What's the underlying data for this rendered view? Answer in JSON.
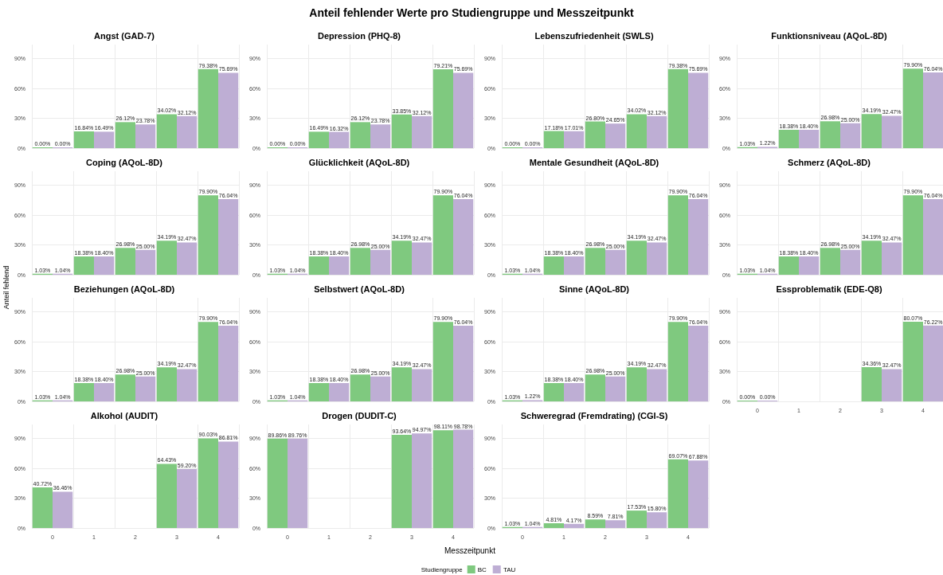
{
  "chart_data": [
    {
      "type": "bar",
      "subtitle": "Angst (GAD-7)",
      "categories": [
        "0",
        "1",
        "2",
        "3",
        "4"
      ],
      "ylim": [
        0,
        104
      ],
      "yticks": [
        {
          "value": 0,
          "label": "0%"
        },
        {
          "value": 30,
          "label": "30%"
        },
        {
          "value": 60,
          "label": "60%"
        },
        {
          "value": 90,
          "label": "90%"
        }
      ],
      "grid": true,
      "tick_labels": "y",
      "series": [
        {
          "color": "#7fc97f",
          "values": [
            0,
            16.84,
            26.12,
            34.02,
            79.38
          ],
          "value_labels": [
            "0.00%",
            "16.84%",
            "26.12%",
            "34.02%",
            "79.38%"
          ]
        },
        {
          "color": "#beaed4",
          "values": [
            0,
            16.49,
            23.78,
            32.12,
            75.69
          ],
          "value_labels": [
            "0.00%",
            "16.49%",
            "23.78%",
            "32.12%",
            "75.69%"
          ]
        }
      ]
    },
    {
      "type": "bar",
      "subtitle": "Depression (PHQ-8)",
      "categories": [
        "0",
        "1",
        "2",
        "3",
        "4"
      ],
      "ylim": [
        0,
        104
      ],
      "yticks": [
        {
          "value": 0,
          "label": "0%"
        },
        {
          "value": 30,
          "label": "30%"
        },
        {
          "value": 60,
          "label": "60%"
        },
        {
          "value": 90,
          "label": "90%"
        }
      ],
      "grid": true,
      "tick_labels": "y",
      "series": [
        {
          "color": "#7fc97f",
          "values": [
            0,
            16.49,
            26.12,
            33.85,
            79.21
          ],
          "value_labels": [
            "0.00%",
            "16.49%",
            "26.12%",
            "33.85%",
            "79.21%"
          ]
        },
        {
          "color": "#beaed4",
          "values": [
            0,
            16.32,
            23.78,
            32.12,
            75.69
          ],
          "value_labels": [
            "0.00%",
            "16.32%",
            "23.78%",
            "32.12%",
            "75.69%"
          ]
        }
      ]
    },
    {
      "type": "bar",
      "subtitle": "Lebenszufriedenheit (SWLS)",
      "categories": [
        "0",
        "1",
        "2",
        "3",
        "4"
      ],
      "ylim": [
        0,
        104
      ],
      "yticks": [
        {
          "value": 0,
          "label": "0%"
        },
        {
          "value": 30,
          "label": "30%"
        },
        {
          "value": 60,
          "label": "60%"
        },
        {
          "value": 90,
          "label": "90%"
        }
      ],
      "grid": true,
      "tick_labels": "y",
      "series": [
        {
          "color": "#7fc97f",
          "values": [
            0,
            17.18,
            26.8,
            34.02,
            79.38
          ],
          "value_labels": [
            "0.00%",
            "17.18%",
            "26.80%",
            "34.02%",
            "79.38%"
          ]
        },
        {
          "color": "#beaed4",
          "values": [
            0,
            17.01,
            24.65,
            32.12,
            75.69
          ],
          "value_labels": [
            "0.00%",
            "17.01%",
            "24.65%",
            "32.12%",
            "75.69%"
          ]
        }
      ]
    },
    {
      "type": "bar",
      "subtitle": "Funktionsniveau (AQoL-8D)",
      "categories": [
        "0",
        "1",
        "2",
        "3",
        "4"
      ],
      "ylim": [
        0,
        104
      ],
      "yticks": [
        {
          "value": 0,
          "label": "0%"
        },
        {
          "value": 30,
          "label": "30%"
        },
        {
          "value": 60,
          "label": "60%"
        },
        {
          "value": 90,
          "label": "90%"
        }
      ],
      "grid": true,
      "tick_labels": "y",
      "series": [
        {
          "color": "#7fc97f",
          "values": [
            1.03,
            18.38,
            26.98,
            34.19,
            79.9
          ],
          "value_labels": [
            "1.03%",
            "18.38%",
            "26.98%",
            "34.19%",
            "79.90%"
          ]
        },
        {
          "color": "#beaed4",
          "values": [
            1.22,
            18.4,
            25.0,
            32.47,
            76.04
          ],
          "value_labels": [
            "1.22%",
            "18.40%",
            "25.00%",
            "32.47%",
            "76.04%"
          ]
        }
      ]
    },
    {
      "type": "bar",
      "subtitle": "Coping (AQoL-8D)",
      "categories": [
        "0",
        "1",
        "2",
        "3",
        "4"
      ],
      "ylim": [
        0,
        104
      ],
      "yticks": [
        {
          "value": 0,
          "label": "0%"
        },
        {
          "value": 30,
          "label": "30%"
        },
        {
          "value": 60,
          "label": "60%"
        },
        {
          "value": 90,
          "label": "90%"
        }
      ],
      "grid": true,
      "tick_labels": "y",
      "series": [
        {
          "color": "#7fc97f",
          "values": [
            1.03,
            18.38,
            26.98,
            34.19,
            79.9
          ],
          "value_labels": [
            "1.03%",
            "18.38%",
            "26.98%",
            "34.19%",
            "79.90%"
          ]
        },
        {
          "color": "#beaed4",
          "values": [
            1.04,
            18.4,
            25.0,
            32.47,
            76.04
          ],
          "value_labels": [
            "1.04%",
            "18.40%",
            "25.00%",
            "32.47%",
            "76.04%"
          ]
        }
      ]
    },
    {
      "type": "bar",
      "subtitle": "Glücklichkeit (AQoL-8D)",
      "categories": [
        "0",
        "1",
        "2",
        "3",
        "4"
      ],
      "ylim": [
        0,
        104
      ],
      "yticks": [
        {
          "value": 0,
          "label": "0%"
        },
        {
          "value": 30,
          "label": "30%"
        },
        {
          "value": 60,
          "label": "60%"
        },
        {
          "value": 90,
          "label": "90%"
        }
      ],
      "grid": true,
      "tick_labels": "y",
      "series": [
        {
          "color": "#7fc97f",
          "values": [
            1.03,
            18.38,
            26.98,
            34.19,
            79.9
          ],
          "value_labels": [
            "1.03%",
            "18.38%",
            "26.98%",
            "34.19%",
            "79.90%"
          ]
        },
        {
          "color": "#beaed4",
          "values": [
            1.04,
            18.4,
            25.0,
            32.47,
            76.04
          ],
          "value_labels": [
            "1.04%",
            "18.40%",
            "25.00%",
            "32.47%",
            "76.04%"
          ]
        }
      ]
    },
    {
      "type": "bar",
      "subtitle": "Mentale Gesundheit (AQoL-8D)",
      "categories": [
        "0",
        "1",
        "2",
        "3",
        "4"
      ],
      "ylim": [
        0,
        104
      ],
      "yticks": [
        {
          "value": 0,
          "label": "0%"
        },
        {
          "value": 30,
          "label": "30%"
        },
        {
          "value": 60,
          "label": "60%"
        },
        {
          "value": 90,
          "label": "90%"
        }
      ],
      "grid": true,
      "tick_labels": "y",
      "series": [
        {
          "color": "#7fc97f",
          "values": [
            1.03,
            18.38,
            26.98,
            34.19,
            79.9
          ],
          "value_labels": [
            "1.03%",
            "18.38%",
            "26.98%",
            "34.19%",
            "79.90%"
          ]
        },
        {
          "color": "#beaed4",
          "values": [
            1.04,
            18.4,
            25.0,
            32.47,
            76.04
          ],
          "value_labels": [
            "1.04%",
            "18.40%",
            "25.00%",
            "32.47%",
            "76.04%"
          ]
        }
      ]
    },
    {
      "type": "bar",
      "subtitle": "Schmerz (AQoL-8D)",
      "categories": [
        "0",
        "1",
        "2",
        "3",
        "4"
      ],
      "ylim": [
        0,
        104
      ],
      "yticks": [
        {
          "value": 0,
          "label": "0%"
        },
        {
          "value": 30,
          "label": "30%"
        },
        {
          "value": 60,
          "label": "60%"
        },
        {
          "value": 90,
          "label": "90%"
        }
      ],
      "grid": true,
      "tick_labels": "y",
      "series": [
        {
          "color": "#7fc97f",
          "values": [
            1.03,
            18.38,
            26.98,
            34.19,
            79.9
          ],
          "value_labels": [
            "1.03%",
            "18.38%",
            "26.98%",
            "34.19%",
            "79.90%"
          ]
        },
        {
          "color": "#beaed4",
          "values": [
            1.04,
            18.4,
            25.0,
            32.47,
            76.04
          ],
          "value_labels": [
            "1.04%",
            "18.40%",
            "25.00%",
            "32.47%",
            "76.04%"
          ]
        }
      ]
    },
    {
      "type": "bar",
      "subtitle": "Beziehungen (AQoL-8D)",
      "categories": [
        "0",
        "1",
        "2",
        "3",
        "4"
      ],
      "ylim": [
        0,
        104
      ],
      "yticks": [
        {
          "value": 0,
          "label": "0%"
        },
        {
          "value": 30,
          "label": "30%"
        },
        {
          "value": 60,
          "label": "60%"
        },
        {
          "value": 90,
          "label": "90%"
        }
      ],
      "grid": true,
      "tick_labels": "y",
      "series": [
        {
          "color": "#7fc97f",
          "values": [
            1.03,
            18.38,
            26.98,
            34.19,
            79.9
          ],
          "value_labels": [
            "1.03%",
            "18.38%",
            "26.98%",
            "34.19%",
            "79.90%"
          ]
        },
        {
          "color": "#beaed4",
          "values": [
            1.04,
            18.4,
            25.0,
            32.47,
            76.04
          ],
          "value_labels": [
            "1.04%",
            "18.40%",
            "25.00%",
            "32.47%",
            "76.04%"
          ]
        }
      ]
    },
    {
      "type": "bar",
      "subtitle": "Selbstwert (AQoL-8D)",
      "categories": [
        "0",
        "1",
        "2",
        "3",
        "4"
      ],
      "ylim": [
        0,
        104
      ],
      "yticks": [
        {
          "value": 0,
          "label": "0%"
        },
        {
          "value": 30,
          "label": "30%"
        },
        {
          "value": 60,
          "label": "60%"
        },
        {
          "value": 90,
          "label": "90%"
        }
      ],
      "grid": true,
      "tick_labels": "y",
      "series": [
        {
          "color": "#7fc97f",
          "values": [
            1.03,
            18.38,
            26.98,
            34.19,
            79.9
          ],
          "value_labels": [
            "1.03%",
            "18.38%",
            "26.98%",
            "34.19%",
            "79.90%"
          ]
        },
        {
          "color": "#beaed4",
          "values": [
            1.04,
            18.4,
            25.0,
            32.47,
            76.04
          ],
          "value_labels": [
            "1.04%",
            "18.40%",
            "25.00%",
            "32.47%",
            "76.04%"
          ]
        }
      ]
    },
    {
      "type": "bar",
      "subtitle": "Sinne (AQoL-8D)",
      "categories": [
        "0",
        "1",
        "2",
        "3",
        "4"
      ],
      "ylim": [
        0,
        104
      ],
      "yticks": [
        {
          "value": 0,
          "label": "0%"
        },
        {
          "value": 30,
          "label": "30%"
        },
        {
          "value": 60,
          "label": "60%"
        },
        {
          "value": 90,
          "label": "90%"
        }
      ],
      "grid": true,
      "tick_labels": "y",
      "series": [
        {
          "color": "#7fc97f",
          "values": [
            1.03,
            18.38,
            26.98,
            34.19,
            79.9
          ],
          "value_labels": [
            "1.03%",
            "18.38%",
            "26.98%",
            "34.19%",
            "79.90%"
          ]
        },
        {
          "color": "#beaed4",
          "values": [
            1.22,
            18.4,
            25.0,
            32.47,
            76.04
          ],
          "value_labels": [
            "1.22%",
            "18.40%",
            "25.00%",
            "32.47%",
            "76.04%"
          ]
        }
      ]
    },
    {
      "type": "bar",
      "subtitle": "Essproblematik (EDE-Q8)",
      "categories": [
        "0",
        "1",
        "2",
        "3",
        "4"
      ],
      "ylim": [
        0,
        104
      ],
      "yticks": [
        {
          "value": 0,
          "label": "0%"
        },
        {
          "value": 30,
          "label": "30%"
        },
        {
          "value": 60,
          "label": "60%"
        },
        {
          "value": 90,
          "label": "90%"
        }
      ],
      "grid": true,
      "series": [
        {
          "color": "#7fc97f",
          "values": [
            0,
            null,
            null,
            34.36,
            80.07
          ],
          "value_labels": [
            "0.00%",
            null,
            null,
            "34.36%",
            "80.07%"
          ]
        },
        {
          "color": "#beaed4",
          "values": [
            0,
            null,
            null,
            32.47,
            76.22
          ],
          "value_labels": [
            "0.00%",
            null,
            null,
            "32.47%",
            "76.22%"
          ]
        }
      ]
    },
    {
      "type": "bar",
      "subtitle": "Alkohol (AUDIT)",
      "categories": [
        "0",
        "1",
        "2",
        "3",
        "4"
      ],
      "ylim": [
        0,
        104
      ],
      "yticks": [
        {
          "value": 0,
          "label": "0%"
        },
        {
          "value": 30,
          "label": "30%"
        },
        {
          "value": 60,
          "label": "60%"
        },
        {
          "value": 90,
          "label": "90%"
        }
      ],
      "grid": true,
      "series": [
        {
          "color": "#7fc97f",
          "values": [
            40.72,
            null,
            null,
            64.43,
            90.03
          ],
          "value_labels": [
            "40.72%",
            null,
            null,
            "64.43%",
            "90.03%"
          ]
        },
        {
          "color": "#beaed4",
          "values": [
            36.46,
            null,
            null,
            59.2,
            86.81
          ],
          "value_labels": [
            "36.46%",
            null,
            null,
            "59.20%",
            "86.81%"
          ]
        }
      ]
    },
    {
      "type": "bar",
      "subtitle": "Drogen (DUDIT-C)",
      "categories": [
        "0",
        "1",
        "2",
        "3",
        "4"
      ],
      "ylim": [
        0,
        104
      ],
      "yticks": [
        {
          "value": 0,
          "label": "0%"
        },
        {
          "value": 30,
          "label": "30%"
        },
        {
          "value": 60,
          "label": "60%"
        },
        {
          "value": 90,
          "label": "90%"
        }
      ],
      "grid": true,
      "series": [
        {
          "color": "#7fc97f",
          "values": [
            89.86,
            null,
            null,
            93.64,
            98.11
          ],
          "value_labels": [
            "89.86%",
            null,
            null,
            "93.64%",
            "98.11%"
          ]
        },
        {
          "color": "#beaed4",
          "values": [
            89.76,
            null,
            null,
            94.97,
            98.78
          ],
          "value_labels": [
            "89.76%",
            null,
            null,
            "94.97%",
            "98.78%"
          ]
        }
      ]
    },
    {
      "type": "bar",
      "subtitle": "Schweregrad (Fremdrating) (CGI-S)",
      "categories": [
        "0",
        "1",
        "2",
        "3",
        "4"
      ],
      "ylim": [
        0,
        104
      ],
      "yticks": [
        {
          "value": 0,
          "label": "0%"
        },
        {
          "value": 30,
          "label": "30%"
        },
        {
          "value": 60,
          "label": "60%"
        },
        {
          "value": 90,
          "label": "90%"
        }
      ],
      "grid": true,
      "series": [
        {
          "color": "#7fc97f",
          "values": [
            1.03,
            4.81,
            8.59,
            17.53,
            69.07
          ],
          "value_labels": [
            "1.03%",
            "4.81%",
            "8.59%",
            "17.53%",
            "69.07%"
          ]
        },
        {
          "color": "#beaed4",
          "values": [
            1.04,
            4.17,
            7.81,
            15.8,
            67.88
          ],
          "value_labels": [
            "1.04%",
            "4.17%",
            "7.81%",
            "15.80%",
            "67.88%"
          ]
        }
      ]
    },
    {
      "type": "other",
      "title": "Anteil fehlender Werte pro Studiengruppe und Messzeitpunkt",
      "ylabel": "Anteil fehlend",
      "xlabel": "Messzeitpunkt",
      "legend": "bottom",
      "legend_title": "Studiengruppe",
      "series": [
        {
          "name": "BC",
          "color": "#7fc97f"
        },
        {
          "name": "TAU",
          "color": "#beaed4"
        }
      ]
    }
  ]
}
